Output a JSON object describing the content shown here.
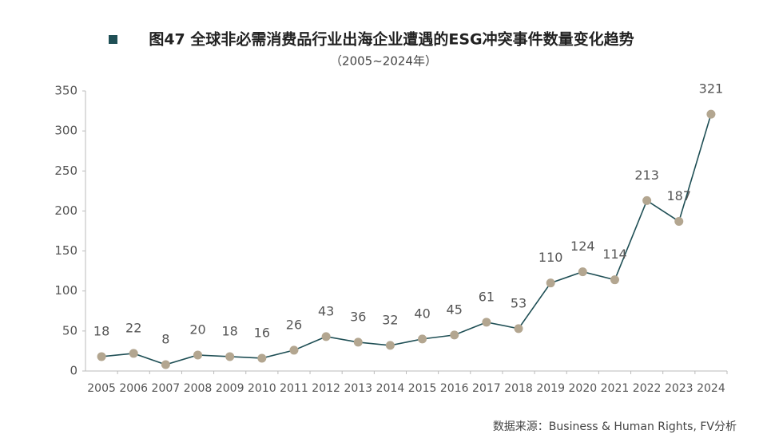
{
  "chart_data": {
    "type": "line",
    "title": "图47  全球非必需消费品行业出海企业遭遇的ESG冲突事件数量变化趋势",
    "subtitle": "（2005~2024年）",
    "source": "数据来源：Business & Human Rights, FV分析",
    "categories": [
      "2005",
      "2006",
      "2007",
      "2008",
      "2009",
      "2010",
      "2011",
      "2012",
      "2013",
      "2014",
      "2015",
      "2016",
      "2017",
      "2018",
      "2019",
      "2020",
      "2021",
      "2022",
      "2023",
      "2024"
    ],
    "values": [
      18,
      22,
      8,
      20,
      18,
      16,
      26,
      43,
      36,
      32,
      40,
      45,
      61,
      53,
      110,
      124,
      114,
      213,
      187,
      321
    ],
    "color": "#1f4f55",
    "marker_color": "#b3a690",
    "ylim": [
      0,
      350
    ],
    "yticks": [
      0,
      50,
      100,
      150,
      200,
      250,
      300,
      350
    ],
    "grid": false
  }
}
